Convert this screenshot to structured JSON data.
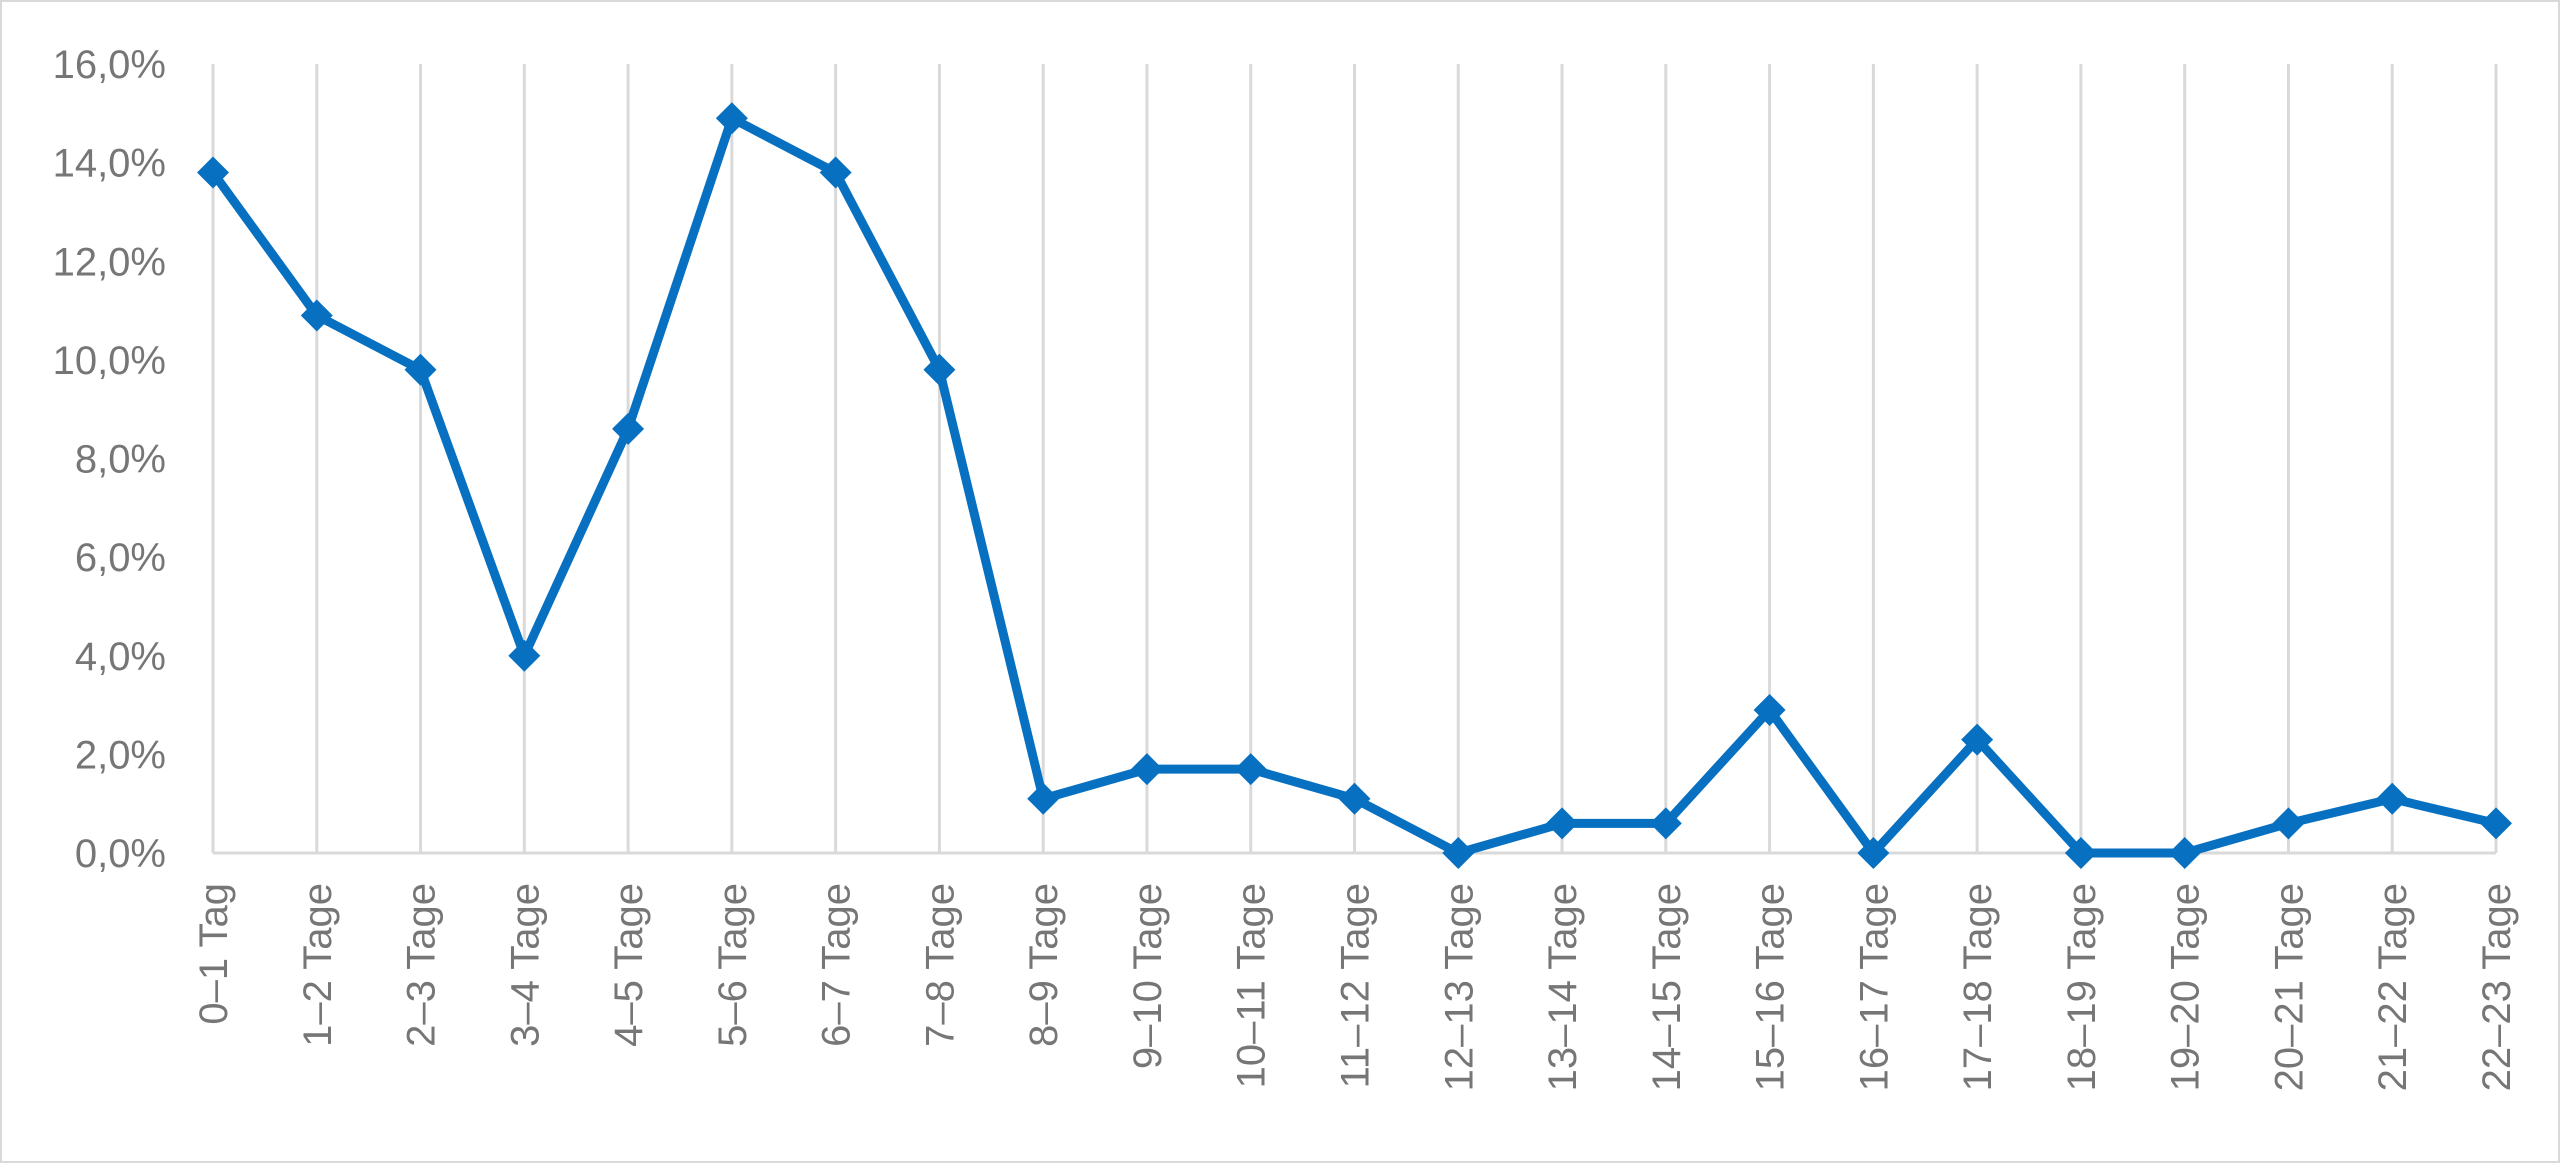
{
  "chart_data": {
    "type": "line",
    "title": "",
    "xlabel": "",
    "ylabel": "",
    "categories": [
      "0–1 Tag",
      "1–2 Tage",
      "2–3 Tage",
      "3–4 Tage",
      "4–5 Tage",
      "5–6 Tage",
      "6–7 Tage",
      "7–8 Tage",
      "8–9 Tage",
      "9–10 Tage",
      "10–11 Tage",
      "11–12 Tage",
      "12–13 Tage",
      "13–14 Tage",
      "14–15 Tage",
      "15–16 Tage",
      "16–17 Tage",
      "17–18 Tage",
      "18–19 Tage",
      "19–20 Tage",
      "20–21 Tage",
      "21–22 Tage",
      "22–23 Tage"
    ],
    "series": [
      {
        "values": [
          13.8,
          10.9,
          9.8,
          4.0,
          8.6,
          14.9,
          13.8,
          9.8,
          1.1,
          1.7,
          1.7,
          1.1,
          0.0,
          0.6,
          0.6,
          2.9,
          0.0,
          2.3,
          0.0,
          0.0,
          0.6,
          1.1,
          0.6
        ]
      }
    ],
    "ylim": [
      0,
      16
    ],
    "ytick_labels": [
      "0,0%",
      "2,0%",
      "4,0%",
      "6,0%",
      "8,0%",
      "10,0%",
      "12,0%",
      "14,0%",
      "16,0%"
    ],
    "grid": "vertical",
    "legend": "none",
    "marker": "diamond",
    "colors": {
      "line": "#0870c0",
      "grid": "#d9d9d9",
      "tick_text": "#767676"
    }
  }
}
